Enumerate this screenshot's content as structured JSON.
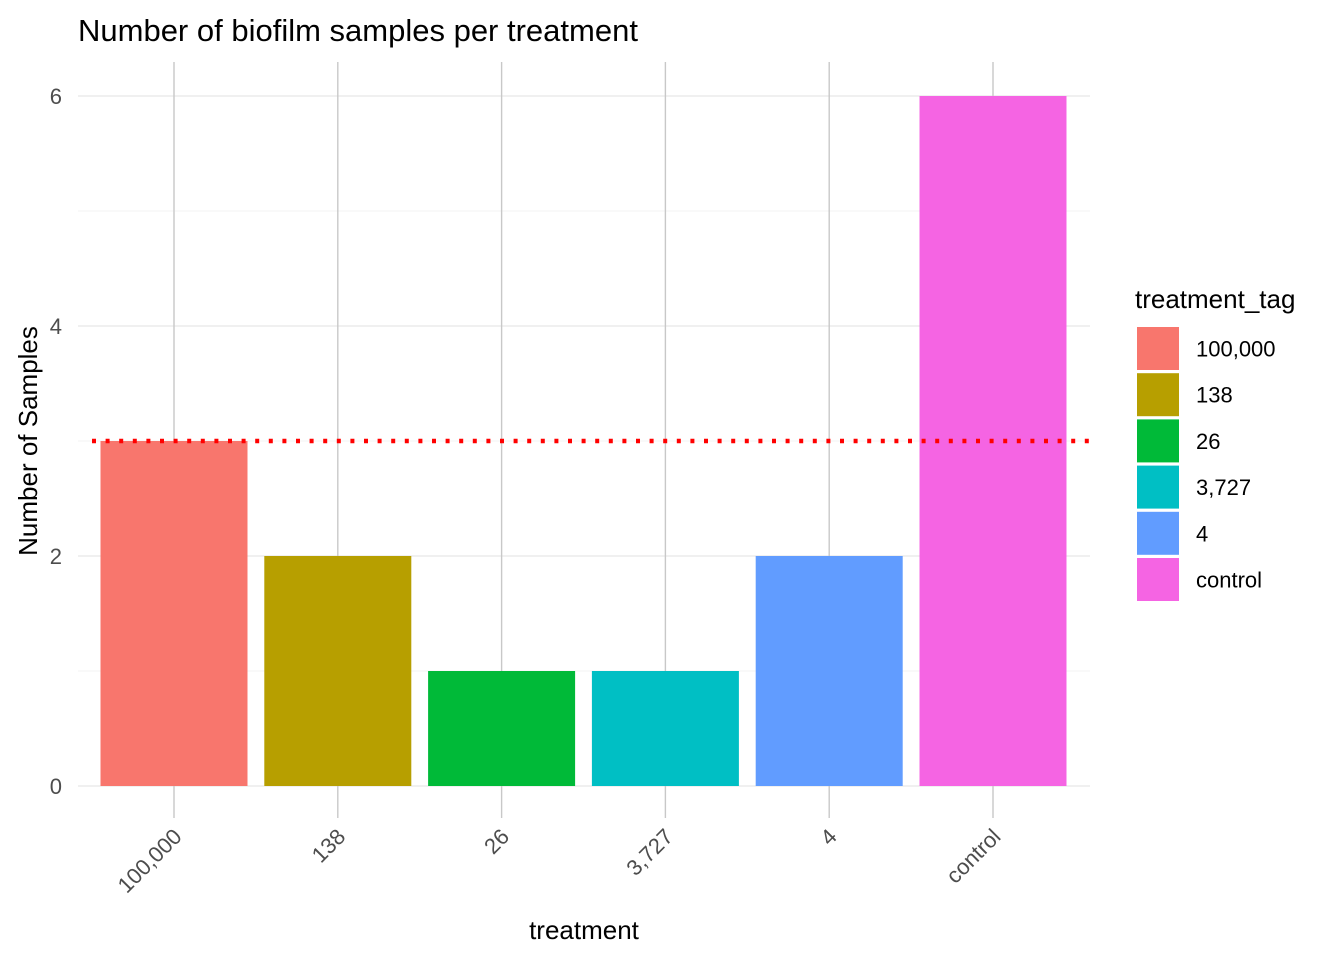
{
  "chart_data": {
    "type": "bar",
    "title": "Number of biofilm samples per treatment",
    "xlabel": "treatment",
    "ylabel": "Number of Samples",
    "categories": [
      "100,000",
      "138",
      "26",
      "3,727",
      "4",
      "control"
    ],
    "values": [
      3,
      2,
      1,
      1,
      2,
      6
    ],
    "colors": [
      "#F8766D",
      "#B79F00",
      "#00BA38",
      "#00BFC4",
      "#619CFF",
      "#F564E3"
    ],
    "ylim": [
      0,
      6
    ],
    "yticks": [
      "0",
      "2",
      "4",
      "6"
    ],
    "reference_line": {
      "value": 3,
      "style": "dotted",
      "color": "#ff0000"
    },
    "legend": {
      "title": "treatment_tag",
      "position": "right",
      "entries": [
        "100,000",
        "138",
        "26",
        "3,727",
        "4",
        "control"
      ]
    },
    "grid": true
  }
}
